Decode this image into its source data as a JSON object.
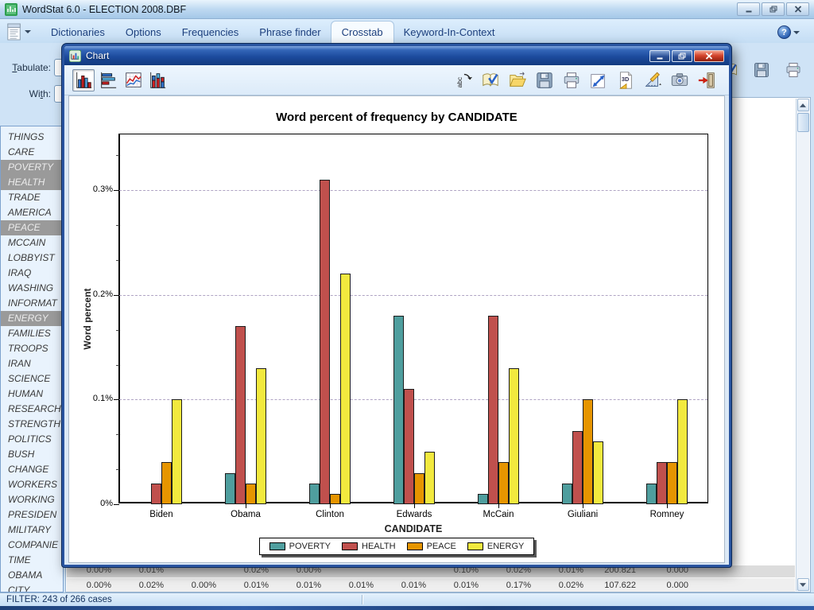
{
  "main_window": {
    "title": "WordStat 6.0 - ELECTION 2008.DBF",
    "controls": [
      "minimize",
      "maximize",
      "close"
    ]
  },
  "menu": {
    "items": [
      "Dictionaries",
      "Options",
      "Frequencies",
      "Phrase finder",
      "Crosstab",
      "Keyword-In-Context"
    ],
    "active": "Crosstab",
    "launcher_icon": "document-list-icon",
    "help_icon": "help-question-icon",
    "help_glyph": "?"
  },
  "form": {
    "tabulate_label": "Tabulate:",
    "with_label": "With:"
  },
  "main_toolbar": {
    "icons": [
      "spellcheck-book",
      "save",
      "print"
    ]
  },
  "sidebar": {
    "items": [
      "THINGS",
      "CARE",
      "POVERTY",
      "HEALTH",
      "TRADE",
      "AMERICA",
      "PEACE",
      "MCCAIN",
      "LOBBYIST",
      "IRAQ",
      "WASHING",
      "INFORMAT",
      "ENERGY",
      "FAMILIES",
      "TROOPS",
      "IRAN",
      "SCIENCE",
      "HUMAN",
      "RESEARCH",
      "STRENGTH",
      "POLITICS",
      "BUSH",
      "CHANGE",
      "WORKERS",
      "WORKING",
      "PRESIDEN",
      "MILITARY",
      "COMPANIE",
      "TIME",
      "OBAMA",
      "CITY"
    ],
    "selected": [
      "POVERTY",
      "HEALTH",
      "PEACE",
      "ENERGY"
    ]
  },
  "chart_window": {
    "title": "Chart",
    "controls": [
      "minimize",
      "maximize",
      "close"
    ],
    "toolbar": {
      "chart_types": [
        "vertical-bar-chart",
        "horizontal-bar-chart",
        "line-chart",
        "stacked-bar-chart"
      ],
      "active_chart_type": "vertical-bar-chart",
      "actions": [
        "rotate-labels",
        "spellcheck-book",
        "open-folder",
        "save",
        "print",
        "export-resize",
        "page-3d",
        "chart-properties",
        "copy-image",
        "exit-door"
      ]
    }
  },
  "chart_data": {
    "type": "bar",
    "title": "Word percent of frequency by CANDIDATE",
    "xlabel": "CANDIDATE",
    "ylabel": "Word percent",
    "categories": [
      "Biden",
      "Obama",
      "Clinton",
      "Edwards",
      "McCain",
      "Giuliani",
      "Romney"
    ],
    "series": [
      {
        "name": "POVERTY",
        "color": "#4f9e9e",
        "values": [
          0,
          0.03,
          0.02,
          0.18,
          0.01,
          0.02,
          0.02
        ]
      },
      {
        "name": "HEALTH",
        "color": "#c0504d",
        "values": [
          0.02,
          0.17,
          0.31,
          0.11,
          0.18,
          0.07,
          0.04
        ]
      },
      {
        "name": "PEACE",
        "color": "#e69500",
        "values": [
          0.04,
          0.02,
          0.01,
          0.03,
          0.04,
          0.1,
          0.04
        ]
      },
      {
        "name": "ENERGY",
        "color": "#f2e93e",
        "values": [
          0.1,
          0.13,
          0.22,
          0.05,
          0.13,
          0.06,
          0.1
        ]
      }
    ],
    "ylim": [
      0,
      0.3533
    ],
    "yticks": [
      {
        "value": 0,
        "label": "0%"
      },
      {
        "value": 0.1,
        "label": "0.1%"
      },
      {
        "value": 0.2,
        "label": "0.2%"
      },
      {
        "value": 0.3,
        "label": "0.3%"
      }
    ],
    "grid": "horizontal dashed at 0.1%, 0.2%, 0.3%",
    "legend_position": "bottom"
  },
  "background_table": {
    "rows": [
      [
        "0.00%",
        "0.01%",
        "",
        "0.02%",
        "0.00%",
        "",
        "",
        "0.10%",
        "0.02%",
        "0.01%",
        "200.821",
        "0.000"
      ],
      [
        "0.00%",
        "0.02%",
        "0.00%",
        "0.01%",
        "0.01%",
        "0.01%",
        "0.01%",
        "0.01%",
        "0.17%",
        "0.02%",
        "107.622",
        "0.000"
      ]
    ]
  },
  "status_bar": {
    "text": "FILTER: 243 of 266 cases"
  }
}
